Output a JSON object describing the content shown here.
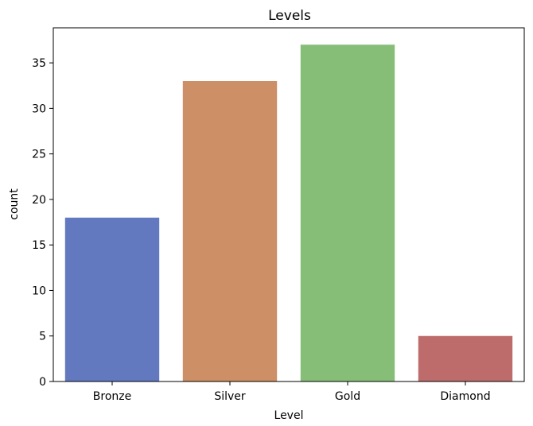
{
  "chart_data": {
    "type": "bar",
    "title": "Levels",
    "xlabel": "Level",
    "ylabel": "count",
    "categories": [
      "Bronze",
      "Silver",
      "Gold",
      "Diamond"
    ],
    "values": [
      18,
      33,
      37,
      5
    ],
    "colors": [
      "#6279bf",
      "#cd8f65",
      "#86be78",
      "#bd6b6b"
    ],
    "ylim": [
      0,
      38.85
    ],
    "yticks": [
      0,
      5,
      10,
      15,
      20,
      25,
      30,
      35
    ],
    "grid": false,
    "legend": "none"
  }
}
